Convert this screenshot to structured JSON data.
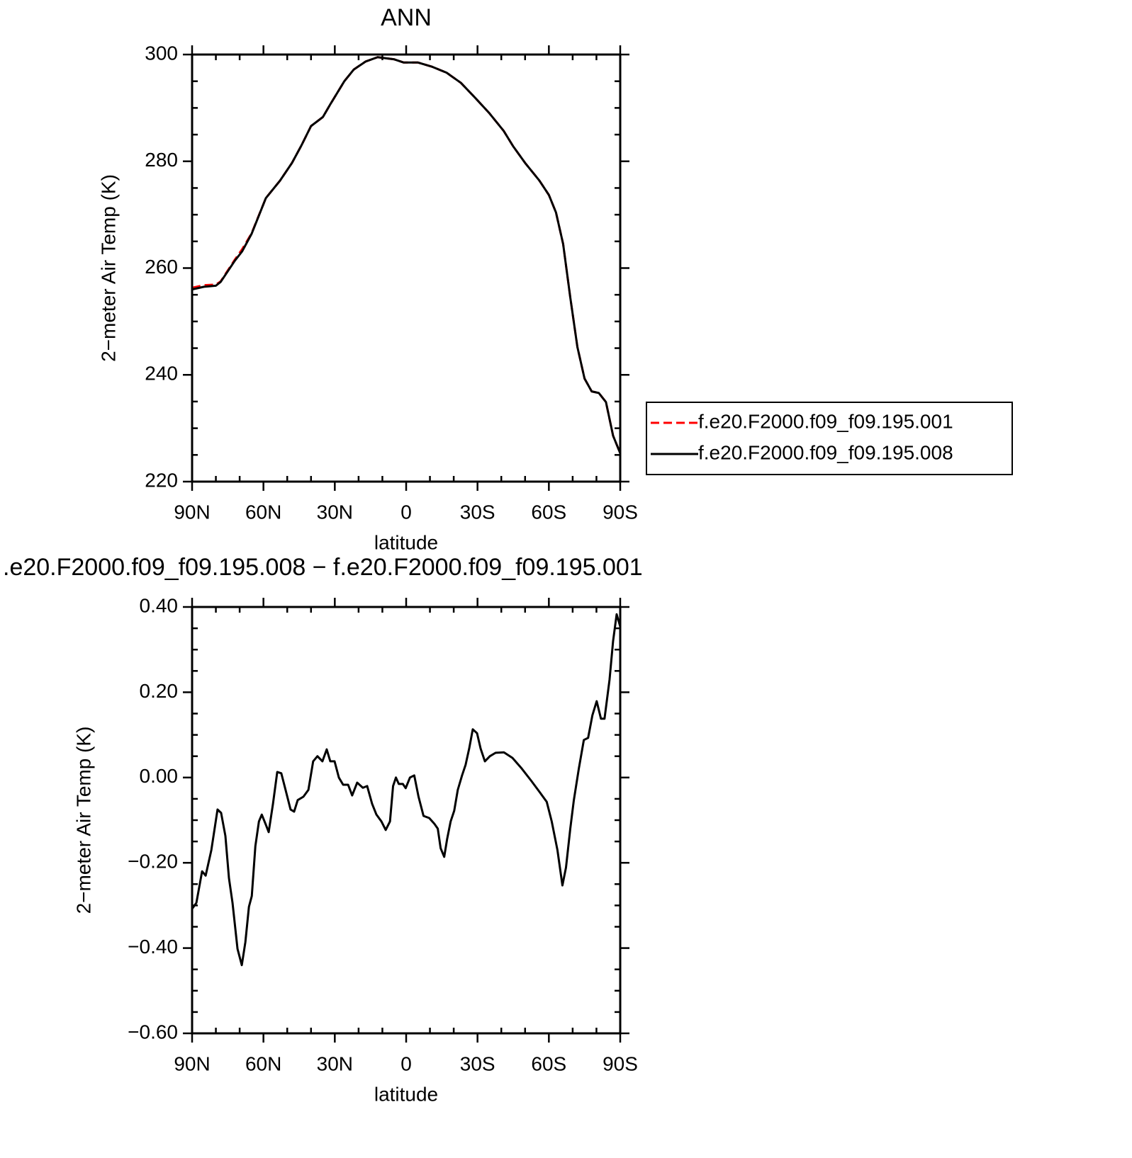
{
  "chart_data": [
    {
      "type": "line",
      "title": "ANN",
      "xlabel": "latitude",
      "ylabel": "2−meter Air Temp (K)",
      "x": [
        90,
        85,
        80,
        78,
        72,
        69,
        65,
        59,
        53,
        48,
        44,
        40,
        35,
        32,
        26,
        22,
        17,
        12,
        5,
        1,
        -5,
        -11,
        -17,
        -23,
        -29,
        -35,
        -41,
        -45,
        -50,
        -56,
        -60,
        -63,
        -66,
        -69,
        -72,
        -75,
        -78,
        -81,
        -84,
        -87,
        -90
      ],
      "series": [
        {
          "name": "f.e20.F2000.f09_f09.195.001",
          "color": "#ff0000",
          "dash": "dashed",
          "values": [
            256.3,
            256.8,
            256.9,
            257.5,
            261.6,
            263.5,
            266.5,
            273.1,
            276.4,
            279.7,
            283,
            286.6,
            288.3,
            290.6,
            295,
            297.2,
            298.7,
            299.5,
            299.1,
            298.5,
            298.5,
            297.7,
            296.6,
            294.7,
            291.9,
            289,
            285.7,
            282.8,
            279.7,
            276.4,
            273.7,
            270.4,
            264.5,
            254.5,
            245.2,
            239.3,
            236.9,
            236.6,
            234.9,
            228.6,
            225.3
          ]
        },
        {
          "name": "f.e20.F2000.f09_f09.195.008",
          "color": "#000000",
          "dash": "solid",
          "values": [
            256,
            256.5,
            256.7,
            257.4,
            261.4,
            263.1,
            266.4,
            273.1,
            276.4,
            279.7,
            283,
            286.6,
            288.3,
            290.6,
            295,
            297.2,
            298.7,
            299.5,
            299.1,
            298.5,
            298.5,
            297.7,
            296.6,
            294.7,
            291.9,
            289,
            285.7,
            282.8,
            279.7,
            276.4,
            273.7,
            270.4,
            264.5,
            254.5,
            245.2,
            239.3,
            236.9,
            236.6,
            234.9,
            228.6,
            225.3
          ]
        }
      ],
      "xlim": [
        90,
        -90
      ],
      "xticks": [
        {
          "value": 90,
          "label": "90N"
        },
        {
          "value": 60,
          "label": "60N"
        },
        {
          "value": 30,
          "label": "30N"
        },
        0,
        {
          "value": -30,
          "label": "30S"
        },
        {
          "value": -60,
          "label": "60S"
        },
        {
          "value": -90,
          "label": "90S"
        }
      ],
      "ylim": [
        220,
        300
      ],
      "yticks": [
        220,
        240,
        260,
        280,
        300
      ],
      "legend": "outside right"
    },
    {
      "type": "line",
      "title": ".e20.F2000.f09_f09.195.008 − f.e20.F2000.f09_f09.195.001",
      "xlabel": "latitude",
      "ylabel": "2−meter Air Temp (K)",
      "x": [
        90,
        88.2,
        85.8,
        84.3,
        81.9,
        79.3,
        77.8,
        76,
        74.5,
        73,
        70.9,
        69.1,
        67.6,
        66.1,
        64.9,
        63.4,
        61.9,
        60.7,
        58.9,
        57.8,
        56,
        54.2,
        52.5,
        50.7,
        48.6,
        47.1,
        45.6,
        43.2,
        41.1,
        39.1,
        37.3,
        35.2,
        33.4,
        31.9,
        30.1,
        28.3,
        26.5,
        24.4,
        22.7,
        20.6,
        18.2,
        16.4,
        14.3,
        12.5,
        10.4,
        8.6,
        6.8,
        5.5,
        4.3,
        3.1,
        1.4,
        0.2,
        -1.6,
        -3.4,
        -5.2,
        -7.3,
        -9.7,
        -11.8,
        -13.3,
        -14.5,
        -16,
        -17.2,
        -18.7,
        -20.2,
        -21.7,
        -23.5,
        -25,
        -26.5,
        -28,
        -29.8,
        -31.3,
        -33.1,
        -35.2,
        -37.6,
        -41.1,
        -44.7,
        -48.6,
        -52.5,
        -56.1,
        -59.1,
        -61.2,
        -63.6,
        -65.7,
        -67.2,
        -69,
        -70.5,
        -72.6,
        -74.7,
        -76.5,
        -78.3,
        -80.1,
        -81.9,
        -83.4,
        -85.5,
        -87,
        -88.5,
        -90
      ],
      "values": [
        -0.308,
        -0.294,
        -0.22,
        -0.23,
        -0.17,
        -0.075,
        -0.083,
        -0.137,
        -0.236,
        -0.294,
        -0.402,
        -0.44,
        -0.386,
        -0.303,
        -0.278,
        -0.161,
        -0.103,
        -0.087,
        -0.112,
        -0.128,
        -0.062,
        0.013,
        0.01,
        -0.029,
        -0.075,
        -0.08,
        -0.053,
        -0.045,
        -0.029,
        0.038,
        0.05,
        0.038,
        0.066,
        0.038,
        0.038,
        0,
        -0.017,
        -0.017,
        -0.042,
        -0.012,
        -0.024,
        -0.02,
        -0.062,
        -0.087,
        -0.103,
        -0.123,
        -0.103,
        -0.02,
        0,
        -0.015,
        -0.015,
        -0.025,
        0,
        0.005,
        -0.045,
        -0.09,
        -0.095,
        -0.108,
        -0.12,
        -0.166,
        -0.186,
        -0.145,
        -0.103,
        -0.078,
        -0.029,
        0.005,
        0.03,
        0.068,
        0.113,
        0.104,
        0.068,
        0.038,
        0.05,
        0.058,
        0.059,
        0.046,
        0.021,
        -0.007,
        -0.034,
        -0.057,
        -0.103,
        -0.17,
        -0.253,
        -0.211,
        -0.12,
        -0.053,
        0.021,
        0.088,
        0.093,
        0.146,
        0.179,
        0.138,
        0.138,
        0.229,
        0.32,
        0.383,
        0.354
      ],
      "color": "#000000",
      "xlim": [
        90,
        -90
      ],
      "xticks": [
        {
          "value": 90,
          "label": "90N"
        },
        {
          "value": 60,
          "label": "60N"
        },
        {
          "value": 30,
          "label": "30N"
        },
        0,
        {
          "value": -30,
          "label": "30S"
        },
        {
          "value": -60,
          "label": "60S"
        },
        {
          "value": -90,
          "label": "90S"
        }
      ],
      "ylim": [
        -0.6,
        0.4
      ],
      "yticks": [
        {
          "value": -0.6,
          "label": "−0.60"
        },
        {
          "value": -0.4,
          "label": "−0.40"
        },
        {
          "value": -0.2,
          "label": "−0.20"
        },
        {
          "value": 0,
          "label": "0.00"
        },
        {
          "value": 0.2,
          "label": "0.20"
        },
        {
          "value": 0.4,
          "label": "0.40"
        }
      ]
    }
  ]
}
